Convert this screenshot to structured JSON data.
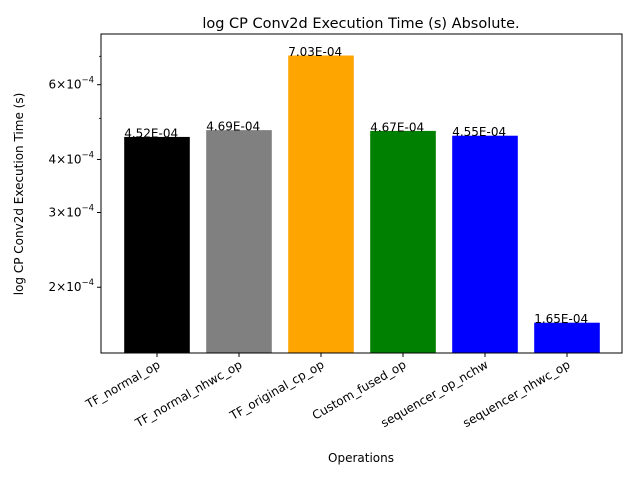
{
  "chart_data": {
    "type": "bar",
    "title": "log CP Conv2d Execution Time (s) Absolute.",
    "xlabel": "Operations",
    "ylabel": "log CP Conv2d Execution Time (s)",
    "yscale": "log",
    "ylim": [
      0.00014,
      0.00079
    ],
    "grid": false,
    "categories": [
      "TF_normal_op",
      "TF_normal_nhwc_op",
      "TF_original_cp_op",
      "Custom_fused_op",
      "sequencer_op_nchw",
      "sequencer_nhwc_op"
    ],
    "values": [
      0.000452,
      0.000469,
      0.000703,
      0.000467,
      0.000455,
      0.000165
    ],
    "data_labels": [
      "4.52E-04",
      "4.69E-04",
      "7.03E-04",
      "4.67E-04",
      "4.55E-04",
      "1.65E-04"
    ],
    "colors": [
      "#000000",
      "#808080",
      "#ffa500",
      "#008000",
      "#0000ff",
      "#0000ff"
    ],
    "yticks": [
      {
        "value": 0.0002,
        "mantissa": "2",
        "exponent": "−4"
      },
      {
        "value": 0.0003,
        "mantissa": "3",
        "exponent": "−4"
      },
      {
        "value": 0.0004,
        "mantissa": "4",
        "exponent": "−4"
      },
      {
        "value": 0.0006,
        "mantissa": "6",
        "exponent": "−4"
      }
    ],
    "minor_ticks": [
      0.0005,
      0.0007
    ]
  }
}
